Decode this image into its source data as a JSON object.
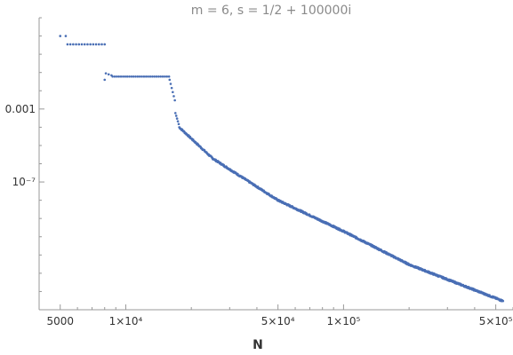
{
  "chart_data": {
    "type": "scatter",
    "title": "m = 6, s = 1/2 + 100000i",
    "xlabel": "N",
    "ylabel": "",
    "x_scale": "log",
    "y_scale": "log",
    "xlim": [
      4000,
      600000
    ],
    "ylim": [
      1e-14,
      100.0
    ],
    "x_ticks": [
      {
        "value": 5000,
        "label": "5000"
      },
      {
        "value": 10000,
        "label": "1×10⁴"
      },
      {
        "value": 50000,
        "label": "5×10⁴"
      },
      {
        "value": 100000,
        "label": "1×10⁵"
      },
      {
        "value": 500000,
        "label": "5×10⁵"
      }
    ],
    "y_ticks": [
      {
        "value": 0.001,
        "label": "0.001"
      },
      {
        "value": 1e-07,
        "label": "10⁻⁷"
      }
    ],
    "series_color": "#4a6fb5",
    "segments": [
      {
        "x_from": 5000,
        "x_to": 5300,
        "y_from": 10.0,
        "y_to": 10.0,
        "count": 2
      },
      {
        "x_from": 5400,
        "x_to": 8000,
        "y_from": 3.5,
        "y_to": 3.5,
        "count": 14
      },
      {
        "x_from": 8000,
        "x_to": 8000,
        "y_from": 0.04,
        "y_to": 0.04,
        "count": 1
      },
      {
        "x_from": 8100,
        "x_to": 8600,
        "y_from": 0.09,
        "y_to": 0.07,
        "count": 3
      },
      {
        "x_from": 8700,
        "x_to": 15800,
        "y_from": 0.06,
        "y_to": 0.06,
        "count": 28
      },
      {
        "x_from": 15900,
        "x_to": 16800,
        "y_from": 0.04,
        "y_to": 0.003,
        "count": 6
      },
      {
        "x_from": 16900,
        "x_to": 17500,
        "y_from": 0.0006,
        "y_to": 0.00015,
        "count": 5
      },
      {
        "x_from": 17600,
        "x_to": 25000,
        "y_from": 0.0001,
        "y_to": 2e-06,
        "count": 80
      },
      {
        "x_from": 25000,
        "x_to": 50000,
        "y_from": 2e-06,
        "y_to": 1e-08,
        "count": 180
      },
      {
        "x_from": 50000,
        "x_to": 100000,
        "y_from": 1e-08,
        "y_to": 2e-10,
        "count": 220
      },
      {
        "x_from": 100000,
        "x_to": 200000,
        "y_from": 2e-10,
        "y_to": 3e-12,
        "count": 240
      },
      {
        "x_from": 200000,
        "x_to": 540000,
        "y_from": 3e-12,
        "y_to": 3e-14,
        "count": 300
      }
    ]
  }
}
